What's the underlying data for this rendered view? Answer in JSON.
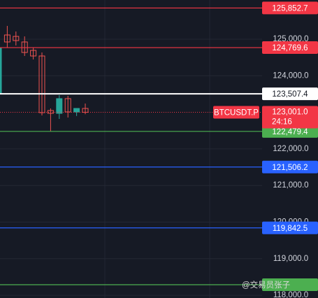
{
  "chart_data": {
    "type": "candlestick",
    "ylim": [
      117925,
      126071
    ],
    "yticks": [
      {
        "value": 125000,
        "label": "125,000.0"
      },
      {
        "value": 124000,
        "label": "124,000.0"
      },
      {
        "value": 122000,
        "label": "122,000.0"
      },
      {
        "value": 121000,
        "label": "121,000.0"
      },
      {
        "value": 120000,
        "label": "120,000.0"
      },
      {
        "value": 119000,
        "label": "119,000.0"
      },
      {
        "value": 118000,
        "label": "118,000.0"
      }
    ],
    "grid": true,
    "up_color": "#26a69a",
    "down_color": "#ef5350",
    "open": [
      123507,
      125115,
      125076,
      124924,
      124694,
      124541,
      123050,
      122973,
      123375,
      123011,
      123107
    ],
    "high": [
      124950,
      125363,
      125210,
      125076,
      124771,
      124637,
      123107,
      123470,
      123451,
      123107,
      123241
    ],
    "low": [
      123400,
      124771,
      124828,
      124541,
      124446,
      122916,
      122476,
      122820,
      122859,
      122900,
      122950
    ],
    "close": [
      124770,
      124924,
      124962,
      124637,
      124541,
      122992,
      122973,
      123375,
      123011,
      123107,
      123001
    ],
    "levels": [
      {
        "value": 125852.7,
        "label": "125,852.7",
        "color": "#f23645"
      },
      {
        "value": 124769.6,
        "label": "124,769.6",
        "color": "#f23645"
      },
      {
        "value": 123507.4,
        "label": "123,507.4",
        "color": "#ffffff"
      },
      {
        "value": 122479.4,
        "label": "122,479.4",
        "color": "#4caf50"
      },
      {
        "value": 121506.2,
        "label": "121,506.2",
        "color": "#2962ff"
      },
      {
        "value": 119842.5,
        "label": "119,842.5",
        "color": "#2962ff"
      },
      {
        "value": 118289,
        "color": "#4caf50"
      }
    ],
    "last_price": {
      "value": 123001.0,
      "label": "123,001.0",
      "countdown": "24:16",
      "symbol": "BTCUSDT.P",
      "color": "#f23645"
    },
    "watermark": "@交易员张子"
  }
}
